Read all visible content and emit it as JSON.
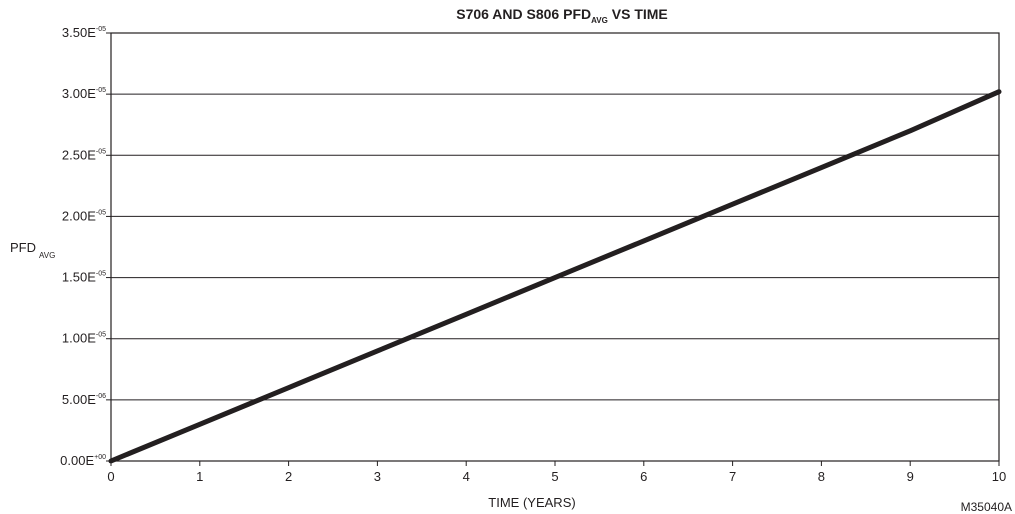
{
  "chart_data": {
    "type": "line",
    "title": {
      "main": "S706 AND S806 PFD",
      "subscript": "AVG",
      "suffix": " VS TIME"
    },
    "xlabel": "TIME (YEARS)",
    "ylabel": {
      "main": "PFD",
      "subscript": "AVG"
    },
    "xlim": [
      0,
      10
    ],
    "ylim": [
      0,
      3.5e-05
    ],
    "x_ticks": [
      {
        "value": 0,
        "label": "0"
      },
      {
        "value": 1,
        "label": "1"
      },
      {
        "value": 2,
        "label": "2"
      },
      {
        "value": 3,
        "label": "3"
      },
      {
        "value": 4,
        "label": "4"
      },
      {
        "value": 5,
        "label": "5"
      },
      {
        "value": 6,
        "label": "6"
      },
      {
        "value": 7,
        "label": "7"
      },
      {
        "value": 8,
        "label": "8"
      },
      {
        "value": 9,
        "label": "9"
      },
      {
        "value": 10,
        "label": "10"
      }
    ],
    "y_ticks": [
      {
        "value": 0,
        "mantissa": "0.00E",
        "exponent": "+00"
      },
      {
        "value": 5e-06,
        "mantissa": "5.00E",
        "exponent": "-06"
      },
      {
        "value": 1e-05,
        "mantissa": "1.00E",
        "exponent": "-05"
      },
      {
        "value": 1.5e-05,
        "mantissa": "1.50E",
        "exponent": "-05"
      },
      {
        "value": 2e-05,
        "mantissa": "2.00E",
        "exponent": "-05"
      },
      {
        "value": 2.5e-05,
        "mantissa": "2.50E",
        "exponent": "-05"
      },
      {
        "value": 3e-05,
        "mantissa": "3.00E",
        "exponent": "-05"
      },
      {
        "value": 3.5e-05,
        "mantissa": "3.50E",
        "exponent": "-05"
      }
    ],
    "grid": "horizontal",
    "series": [
      {
        "x": [
          0,
          1,
          2,
          3,
          4,
          5,
          6,
          7,
          8,
          9,
          10
        ],
        "y": [
          0,
          3e-06,
          6e-06,
          9e-06,
          1.2e-05,
          1.5e-05,
          1.8e-05,
          2.1e-05,
          2.4e-05,
          2.7e-05,
          3.02e-05
        ],
        "color": "#231f20"
      }
    ],
    "figure_id": "M35040A"
  }
}
